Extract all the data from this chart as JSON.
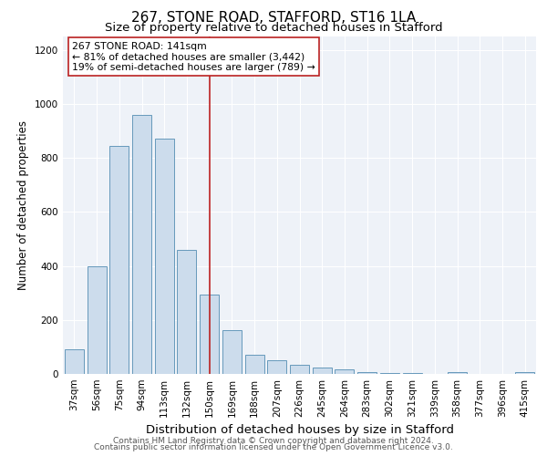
{
  "title1": "267, STONE ROAD, STAFFORD, ST16 1LA",
  "title2": "Size of property relative to detached houses in Stafford",
  "xlabel": "Distribution of detached houses by size in Stafford",
  "ylabel": "Number of detached properties",
  "categories": [
    "37sqm",
    "56sqm",
    "75sqm",
    "94sqm",
    "113sqm",
    "132sqm",
    "150sqm",
    "169sqm",
    "188sqm",
    "207sqm",
    "226sqm",
    "245sqm",
    "264sqm",
    "283sqm",
    "302sqm",
    "321sqm",
    "339sqm",
    "358sqm",
    "377sqm",
    "396sqm",
    "415sqm"
  ],
  "values": [
    90,
    400,
    845,
    960,
    870,
    460,
    295,
    163,
    70,
    50,
    35,
    25,
    18,
    8,
    5,
    4,
    0,
    8,
    0,
    0,
    8
  ],
  "bar_color": "#ccdcec",
  "bar_edge_color": "#6699bb",
  "vline_x": 6.0,
  "vline_color": "#bb2222",
  "annotation_text": "267 STONE ROAD: 141sqm\n← 81% of detached houses are smaller (3,442)\n19% of semi-detached houses are larger (789) →",
  "annotation_box_color": "white",
  "annotation_box_edge_color": "#bb2222",
  "ylim": [
    0,
    1250
  ],
  "yticks": [
    0,
    200,
    400,
    600,
    800,
    1000,
    1200
  ],
  "footer1": "Contains HM Land Registry data © Crown copyright and database right 2024.",
  "footer2": "Contains public sector information licensed under the Open Government Licence v3.0.",
  "bg_color": "#ffffff",
  "plot_bg_color": "#eef2f8",
  "title1_fontsize": 11,
  "title2_fontsize": 9.5,
  "xlabel_fontsize": 9.5,
  "ylabel_fontsize": 8.5,
  "tick_fontsize": 7.5,
  "footer_fontsize": 6.5,
  "annot_fontsize": 7.8
}
